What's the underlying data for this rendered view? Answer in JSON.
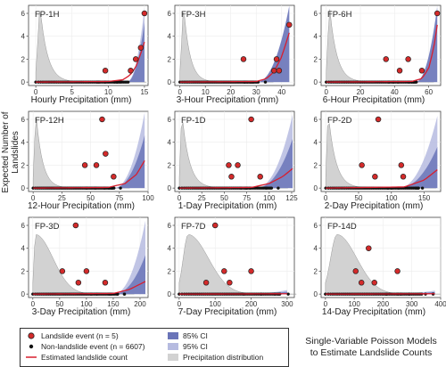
{
  "figure": {
    "ylabel": "Expected Number of Landslides",
    "title_line1": "Single-Variable Poisson Models",
    "title_line2": "to Estimate Landslide Counts"
  },
  "legend": {
    "position": "bottom-left",
    "items": [
      {
        "label": "Landslide event (n = 5)",
        "symbol": "red-circle"
      },
      {
        "label": "Non-landslide event (n = 6607)",
        "symbol": "black-dot"
      },
      {
        "label": "Estimated landslide count",
        "symbol": "red-line"
      },
      {
        "label": "85% CI",
        "symbol": "dark-blue-band"
      },
      {
        "label": "95% CI",
        "symbol": "light-blue-band"
      },
      {
        "label": "Precipitation distribution",
        "symbol": "grey-area"
      }
    ]
  },
  "colors": {
    "landslide": "#d42a2a",
    "curve": "#d81e2e",
    "ci85": "#6a74b8",
    "ci95": "#b6bbe0",
    "distribution": "#d2d2d2",
    "nonlandslide": "#111111",
    "grid": "#ececec"
  },
  "chart_data": [
    {
      "type": "scatter",
      "title": "FP-1H",
      "xlabel": "Hourly Precipitation (mm)",
      "ylabel": "Expected Number of Landslides",
      "xlim": [
        -1,
        15.5
      ],
      "ylim": [
        -0.3,
        6.7
      ],
      "xticks": [
        0,
        5,
        10,
        15
      ],
      "yticks": [
        0,
        2,
        4,
        6
      ],
      "grid": true,
      "landslide_events": [
        [
          9.6,
          1
        ],
        [
          13.1,
          1
        ],
        [
          13.8,
          2
        ],
        [
          14.5,
          3
        ],
        [
          15,
          6
        ]
      ],
      "nonlandslide_max": 14.5,
      "dist_peak": 0.6,
      "dist_shape": "sharp",
      "curve": [
        [
          0,
          0
        ],
        [
          10,
          0.05
        ],
        [
          12,
          0.2
        ],
        [
          13,
          0.6
        ],
        [
          13.8,
          1.3
        ],
        [
          14.5,
          2.5
        ],
        [
          15,
          3.5
        ]
      ],
      "ci_start": 12.5,
      "ci95_top": 6.5,
      "ci85_top": 5.2
    },
    {
      "type": "scatter",
      "title": "FP-3H",
      "xlabel": "3-Hour Precipitation (mm)",
      "ylabel": "Expected Number of Landslides",
      "xlim": [
        -2,
        45
      ],
      "ylim": [
        -0.3,
        6.7
      ],
      "xticks": [
        0,
        10,
        20,
        30,
        40
      ],
      "yticks": [
        0,
        2,
        4,
        6
      ],
      "grid": true,
      "landslide_events": [
        [
          25,
          2
        ],
        [
          37,
          1
        ],
        [
          38,
          2
        ],
        [
          39,
          1
        ],
        [
          43,
          5
        ]
      ],
      "nonlandslide_max": 35,
      "dist_peak": 1.5,
      "dist_shape": "sharp",
      "curve": [
        [
          0,
          0
        ],
        [
          30,
          0.05
        ],
        [
          34,
          0.3
        ],
        [
          37,
          0.9
        ],
        [
          40,
          2.2
        ],
        [
          43,
          4.3
        ]
      ],
      "ci_start": 30,
      "ci95_top": 6.7,
      "ci85_top": 6.6
    },
    {
      "type": "scatter",
      "title": "FP-6H",
      "xlabel": "6-Hour Precipitation (mm)",
      "ylabel": "Expected Number of Landslides",
      "xlim": [
        -3,
        67
      ],
      "ylim": [
        -0.3,
        6.7
      ],
      "xticks": [
        0,
        20,
        40,
        60
      ],
      "yticks": [
        0,
        2,
        4,
        6
      ],
      "grid": true,
      "landslide_events": [
        [
          35,
          2
        ],
        [
          43,
          1
        ],
        [
          48,
          2
        ],
        [
          56,
          1
        ],
        [
          65,
          6
        ]
      ],
      "nonlandslide_max": 60,
      "dist_peak": 2,
      "dist_shape": "sharp",
      "curve": [
        [
          0,
          0
        ],
        [
          50,
          0.05
        ],
        [
          56,
          0.3
        ],
        [
          60,
          1.2
        ],
        [
          63,
          3.0
        ],
        [
          65,
          5.0
        ]
      ],
      "ci_start": 52,
      "ci95_top": 6.7,
      "ci85_top": 6.5
    },
    {
      "type": "scatter",
      "title": "FP-12H",
      "xlabel": "12-Hour Precipitation (mm)",
      "ylabel": "Expected Number of Landslides",
      "xlim": [
        -4,
        100
      ],
      "ylim": [
        -0.3,
        6.7
      ],
      "xticks": [
        0,
        25,
        50,
        75,
        100
      ],
      "yticks": [
        0,
        2,
        4,
        6
      ],
      "grid": true,
      "landslide_events": [
        [
          45,
          2
        ],
        [
          55,
          2
        ],
        [
          60,
          6
        ],
        [
          63,
          3
        ],
        [
          70,
          1
        ]
      ],
      "nonlandslide_max": 80,
      "dist_peak": 2.5,
      "dist_shape": "sharp",
      "curve": [
        [
          0,
          0
        ],
        [
          65,
          0.05
        ],
        [
          80,
          0.4
        ],
        [
          90,
          1.2
        ],
        [
          97,
          2.4
        ]
      ],
      "ci_start": 70,
      "ci95_top": 6.6,
      "ci85_top": 4.6
    },
    {
      "type": "scatter",
      "title": "FP-1D",
      "xlabel": "1-Day Precipitation (mm)",
      "ylabel": "Expected Number of Landslides",
      "xlim": [
        -5,
        128
      ],
      "ylim": [
        -0.3,
        6.7
      ],
      "xticks": [
        0,
        25,
        50,
        75,
        100,
        125
      ],
      "yticks": [
        0,
        2,
        4,
        6
      ],
      "grid": true,
      "landslide_events": [
        [
          55,
          2
        ],
        [
          58,
          1
        ],
        [
          65,
          2
        ],
        [
          80,
          6
        ],
        [
          90,
          1
        ]
      ],
      "nonlandslide_max": 115,
      "dist_peak": 3,
      "dist_shape": "sharp",
      "curve": [
        [
          0,
          0
        ],
        [
          80,
          0.05
        ],
        [
          100,
          0.4
        ],
        [
          115,
          1.0
        ],
        [
          126,
          1.7
        ]
      ],
      "ci_start": 85,
      "ci95_top": 6.4,
      "ci85_top": 4.3
    },
    {
      "type": "scatter",
      "title": "FP-2D",
      "xlabel": "2-Day Precipitation (mm)",
      "ylabel": "Expected Number of Landslides",
      "xlim": [
        -7,
        175
      ],
      "ylim": [
        -0.3,
        6.7
      ],
      "xticks": [
        0,
        50,
        100,
        150
      ],
      "yticks": [
        0,
        2,
        4,
        6
      ],
      "grid": true,
      "landslide_events": [
        [
          55,
          2
        ],
        [
          75,
          1
        ],
        [
          80,
          6
        ],
        [
          115,
          2
        ],
        [
          118,
          1
        ]
      ],
      "nonlandslide_max": 160,
      "dist_peak": 4,
      "dist_shape": "sharp",
      "curve": [
        [
          0,
          0
        ],
        [
          120,
          0.1
        ],
        [
          150,
          0.7
        ],
        [
          170,
          1.6
        ]
      ],
      "ci_start": 110,
      "ci95_top": 6.3,
      "ci85_top": 3.6
    },
    {
      "type": "scatter",
      "title": "FP-3D",
      "xlabel": "3-Day Precipitation (mm)",
      "ylabel": "Expected Number of Landslides",
      "xlim": [
        -8,
        215
      ],
      "ylim": [
        -0.3,
        6.7
      ],
      "xticks": [
        0,
        50,
        100,
        150,
        200
      ],
      "yticks": [
        0,
        2,
        4,
        6
      ],
      "grid": true,
      "landslide_events": [
        [
          55,
          2
        ],
        [
          80,
          6
        ],
        [
          85,
          1
        ],
        [
          100,
          2
        ],
        [
          135,
          1
        ]
      ],
      "nonlandslide_max": 180,
      "dist_peak": 5,
      "dist_shape": "broad",
      "curve": [
        [
          0,
          0
        ],
        [
          150,
          0.05
        ],
        [
          180,
          0.4
        ],
        [
          210,
          1.1
        ]
      ],
      "ci_start": 150,
      "ci95_top": 6.4,
      "ci85_top": 3.4
    },
    {
      "type": "scatter",
      "title": "FP-7D",
      "xlabel": "7-Day Precipitation (mm)",
      "ylabel": "Expected Number of Landslides",
      "xlim": [
        -12,
        320
      ],
      "ylim": [
        -0.3,
        6.7
      ],
      "xticks": [
        0,
        100,
        200,
        300
      ],
      "yticks": [
        0,
        2,
        4,
        6
      ],
      "grid": true,
      "landslide_events": [
        [
          75,
          1
        ],
        [
          100,
          6
        ],
        [
          125,
          2
        ],
        [
          140,
          1
        ],
        [
          200,
          2
        ]
      ],
      "nonlandslide_max": 310,
      "dist_peak": 25,
      "dist_shape": "broad",
      "curve": [
        [
          0,
          0
        ],
        [
          150,
          0.01
        ],
        [
          300,
          0.03
        ]
      ],
      "ci_start": 170,
      "ci95_top": 0.35,
      "ci85_top": 0.2
    },
    {
      "type": "scatter",
      "title": "FP-14D",
      "xlabel": "14-Day Precipitation (mm)",
      "ylabel": "Expected Number of Landslides",
      "xlim": [
        -15,
        400
      ],
      "ylim": [
        -0.3,
        6.7
      ],
      "xticks": [
        0,
        100,
        200,
        300,
        400
      ],
      "yticks": [
        0,
        2,
        4,
        6
      ],
      "grid": true,
      "landslide_events": [
        [
          105,
          2
        ],
        [
          125,
          1
        ],
        [
          150,
          4
        ],
        [
          170,
          1
        ],
        [
          250,
          2
        ]
      ],
      "nonlandslide_max": 380,
      "dist_peak": 40,
      "dist_shape": "broad",
      "curve": [
        [
          0,
          0
        ],
        [
          200,
          0.01
        ],
        [
          380,
          0.03
        ]
      ],
      "ci_start": 200,
      "ci95_top": 0.3,
      "ci85_top": 0.18
    }
  ]
}
